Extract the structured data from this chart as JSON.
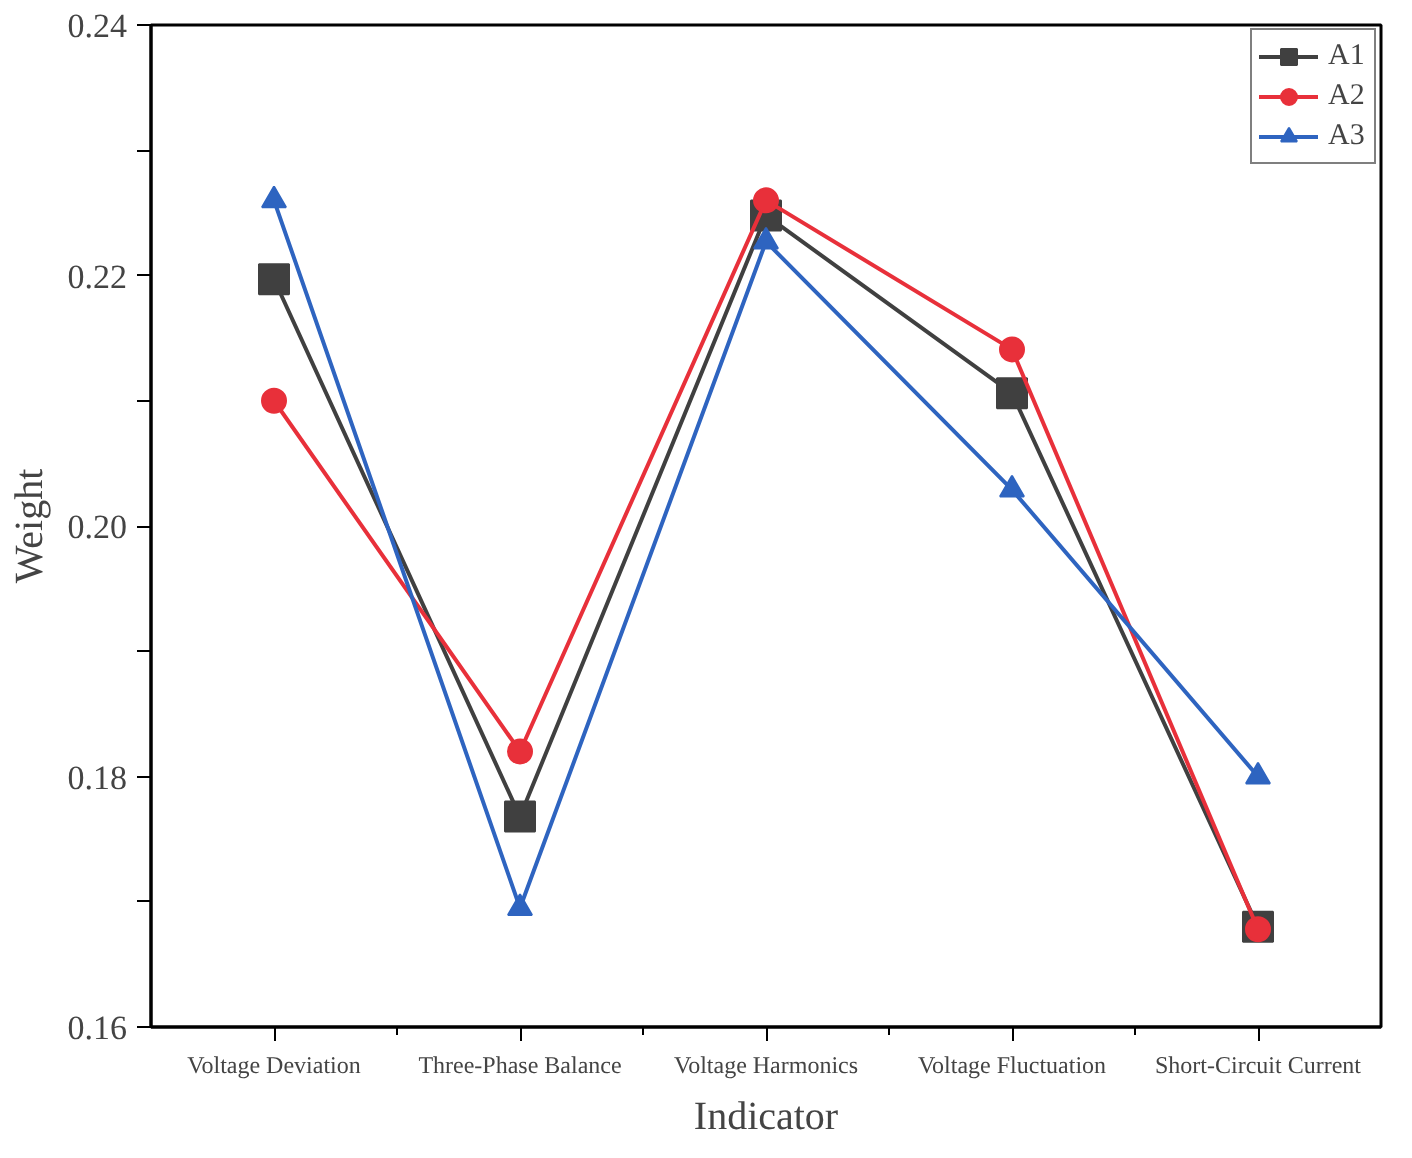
{
  "chart_data": {
    "type": "line",
    "xlabel": "Indicator",
    "ylabel": "Weight",
    "categories": [
      "Voltage Deviation",
      "Three-Phase Balance",
      "Voltage Harmonics",
      "Voltage Fluctuation",
      "Short-Circuit Current"
    ],
    "series": [
      {
        "name": "A1",
        "color": "#404040",
        "marker": "square",
        "values": [
          0.2197,
          0.1768,
          0.2248,
          0.2106,
          0.168
        ]
      },
      {
        "name": "A2",
        "color": "#e8303a",
        "marker": "circle",
        "values": [
          0.21,
          0.182,
          0.226,
          0.2141,
          0.1678
        ]
      },
      {
        "name": "A3",
        "color": "#2e64c0",
        "marker": "triangle",
        "values": [
          0.226,
          0.1695,
          0.2227,
          0.2029,
          0.18
        ]
      }
    ],
    "ylim": [
      0.16,
      0.24
    ],
    "yticks": [
      {
        "value": 0.16,
        "label": "0.16"
      },
      {
        "value": 0.17,
        "label": null
      },
      {
        "value": 0.18,
        "label": "0.18"
      },
      {
        "value": 0.19,
        "label": null
      },
      {
        "value": 0.2,
        "label": "0.20"
      },
      {
        "value": 0.21,
        "label": null
      },
      {
        "value": 0.22,
        "label": "0.22"
      },
      {
        "value": 0.23,
        "label": null
      },
      {
        "value": 0.24,
        "label": "0.24"
      }
    ],
    "grid": false,
    "legend": "top right",
    "line_style": "solid"
  }
}
